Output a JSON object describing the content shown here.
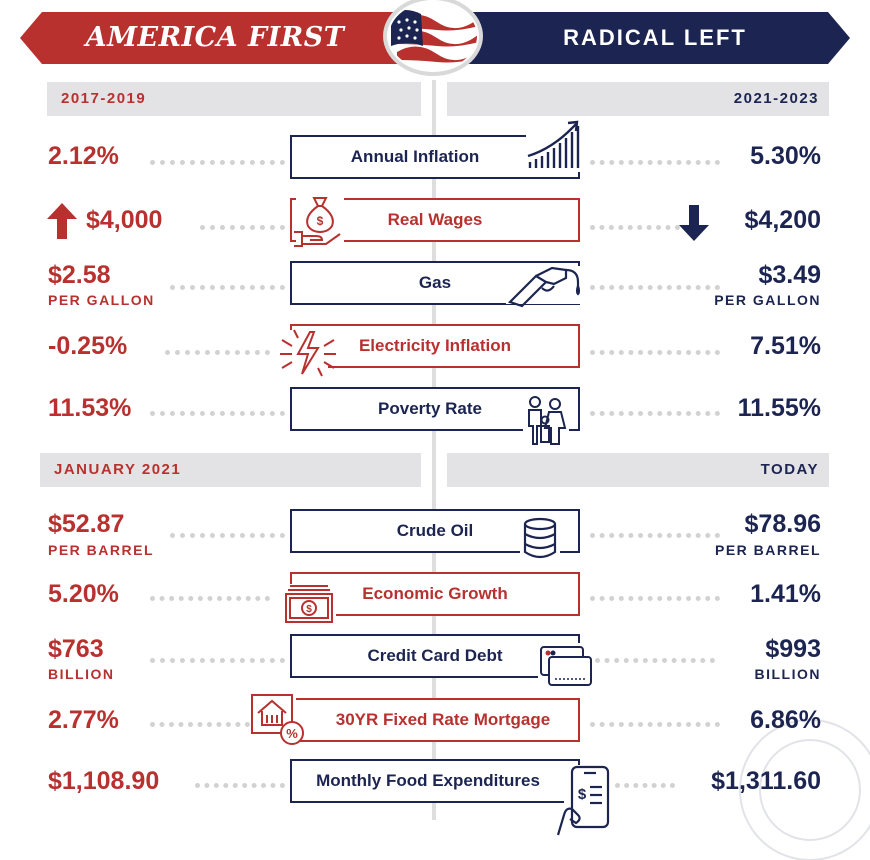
{
  "header": {
    "left_title": "AMERICA FIRST",
    "right_title": "RADICAL LEFT"
  },
  "sections": [
    {
      "left_period": "2017-2019",
      "right_period": "2021-2023"
    },
    {
      "left_period": "JANUARY 2021",
      "right_period": "TODAY"
    }
  ],
  "rows": [
    {
      "label": "Annual Inflation",
      "left": "2.12%",
      "left_sub": "",
      "right": "5.30%",
      "right_sub": "",
      "icon": "rising-bar-chart-icon",
      "style": "navy"
    },
    {
      "label": "Real Wages",
      "left": "$4,000",
      "left_sub": "",
      "left_trend": "up",
      "right": "$4,200",
      "right_sub": "",
      "right_trend": "down",
      "icon": "money-bag-hand-icon",
      "style": "red"
    },
    {
      "label": "Gas",
      "left": "$2.58",
      "left_sub": "PER GALLON",
      "right": "$3.49",
      "right_sub": "PER GALLON",
      "icon": "gas-nozzle-icon",
      "style": "navy"
    },
    {
      "label": "Electricity Inflation",
      "left": "-0.25%",
      "left_sub": "",
      "right": "7.51%",
      "right_sub": "",
      "icon": "lightning-bolt-icon",
      "style": "red"
    },
    {
      "label": "Poverty Rate",
      "left": "11.53%",
      "left_sub": "",
      "right": "11.55%",
      "right_sub": "",
      "icon": "family-icon",
      "style": "navy"
    },
    {
      "label": "Crude Oil",
      "left": "$52.87",
      "left_sub": "PER BARREL",
      "right": "$78.96",
      "right_sub": "PER BARREL",
      "icon": "oil-barrel-stack-icon",
      "style": "navy"
    },
    {
      "label": "Economic Growth",
      "left": "5.20%",
      "left_sub": "",
      "right": "1.41%",
      "right_sub": "",
      "icon": "cash-stack-icon",
      "style": "red"
    },
    {
      "label": "Credit Card Debt",
      "left": "$763",
      "left_sub": "BILLION",
      "right": "$993",
      "right_sub": "BILLION",
      "icon": "credit-cards-icon",
      "style": "navy"
    },
    {
      "label": "30YR Fixed Rate Mortgage",
      "left": "2.77%",
      "left_sub": "",
      "right": "6.86%",
      "right_sub": "",
      "icon": "house-percent-icon",
      "style": "red"
    },
    {
      "label": "Monthly Food Expenditures",
      "left": "$1,108.90",
      "left_sub": "",
      "right": "$1,311.60",
      "right_sub": "",
      "icon": "phone-receipt-icon",
      "style": "navy"
    }
  ],
  "colors": {
    "red": "#b8312f",
    "navy": "#1c2551",
    "gray": "#e3e3e5"
  }
}
